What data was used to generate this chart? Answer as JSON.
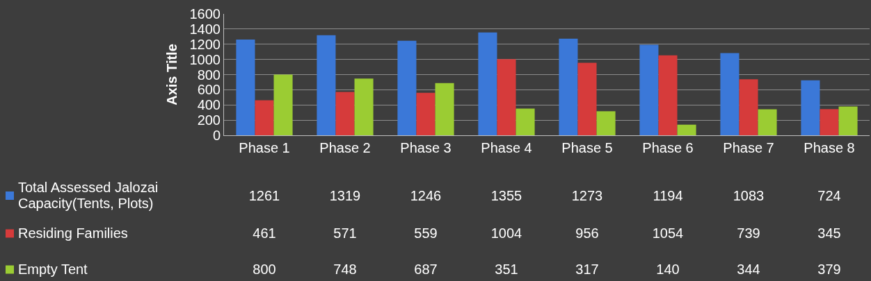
{
  "chart_data": {
    "type": "bar",
    "ylabel": "Axis Title",
    "categories": [
      "Phase 1",
      "Phase 2",
      "Phase 3",
      "Phase 4",
      "Phase 5",
      "Phase 6",
      "Phase 7",
      "Phase 8"
    ],
    "series": [
      {
        "name": "Total Assessed Jalozai Capacity(Tents, Plots)",
        "color": "#3b78d8",
        "values": [
          1261,
          1319,
          1246,
          1355,
          1273,
          1194,
          1083,
          724
        ]
      },
      {
        "name": "Residing Families",
        "color": "#d63b3b",
        "values": [
          461,
          571,
          559,
          1004,
          956,
          1054,
          739,
          345
        ]
      },
      {
        "name": "Empty Tent",
        "color": "#9bcc33",
        "values": [
          800,
          748,
          687,
          351,
          317,
          140,
          344,
          379
        ]
      }
    ],
    "ylim": [
      0,
      1600
    ],
    "yticks": [
      0,
      200,
      400,
      600,
      800,
      1000,
      1200,
      1400,
      1600
    ],
    "grid": "y",
    "legend": "bottom",
    "data_labels": true
  }
}
